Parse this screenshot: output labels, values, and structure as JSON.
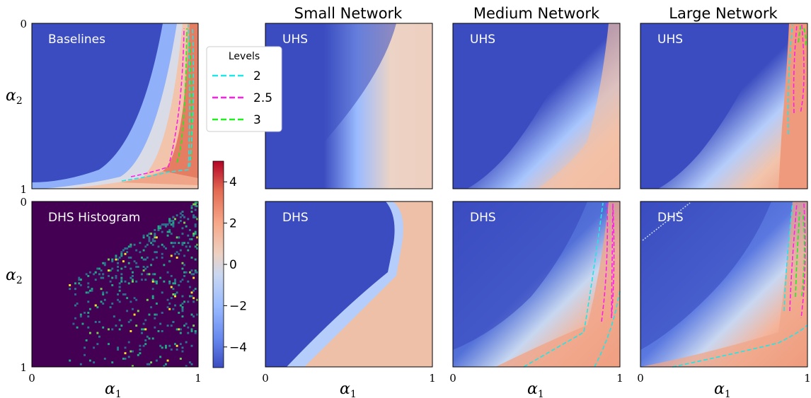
{
  "chart_data": {
    "type": "heatmap",
    "colormap": "coolwarm",
    "color_range": [
      -5,
      5
    ],
    "xlabel": "α",
    "xlabel_sub": "1",
    "ylabel": "α",
    "ylabel_sub": "2",
    "axis_ticks": [
      "0",
      "1"
    ],
    "column_titles": [
      "Small Network",
      "Medium Network",
      "Large Network"
    ],
    "colorbar": {
      "ticks": [
        4,
        2,
        0,
        -2,
        -4
      ],
      "tick_labels": [
        "4",
        "2",
        "0",
        "−2",
        "−4"
      ],
      "colors": [
        "#3b4cc0",
        "#6788ee",
        "#9abbff",
        "#c9d7f0",
        "#edd1c2",
        "#f7a889",
        "#e26952",
        "#b40426"
      ]
    },
    "legend": {
      "title": "Levels",
      "entries": [
        {
          "label": "2",
          "color": "#22e5e5"
        },
        {
          "label": "2.5",
          "color": "#ff1fe6"
        },
        {
          "label": "3",
          "color": "#22ee22"
        }
      ]
    },
    "panels": [
      {
        "label": "Baselines",
        "row": "top",
        "column": "baseline",
        "peak_value": 3.8,
        "contour_levels": [
          2,
          2.5,
          3
        ]
      },
      {
        "label": "DHS Histogram",
        "row": "bottom",
        "column": "baseline",
        "colormap": "viridis",
        "sparse_samples": true
      },
      {
        "label": "UHS",
        "row": "top",
        "column": "Small Network",
        "peak_value": 1.3,
        "contour_levels": []
      },
      {
        "label": "DHS",
        "row": "bottom",
        "column": "Small Network",
        "peak_value": 1.5,
        "contour_levels": []
      },
      {
        "label": "UHS",
        "row": "top",
        "column": "Medium Network",
        "peak_value": 1.9,
        "contour_levels": []
      },
      {
        "label": "DHS",
        "row": "bottom",
        "column": "Medium Network",
        "peak_value": 2.8,
        "contour_levels": [
          2,
          2.5
        ]
      },
      {
        "label": "UHS",
        "row": "top",
        "column": "Large Network",
        "peak_value": 3.2,
        "contour_levels": [
          2,
          2.5,
          3
        ]
      },
      {
        "label": "DHS",
        "row": "bottom",
        "column": "Large Network",
        "peak_value": 3.4,
        "contour_levels": [
          2,
          2.5,
          3
        ]
      }
    ]
  }
}
